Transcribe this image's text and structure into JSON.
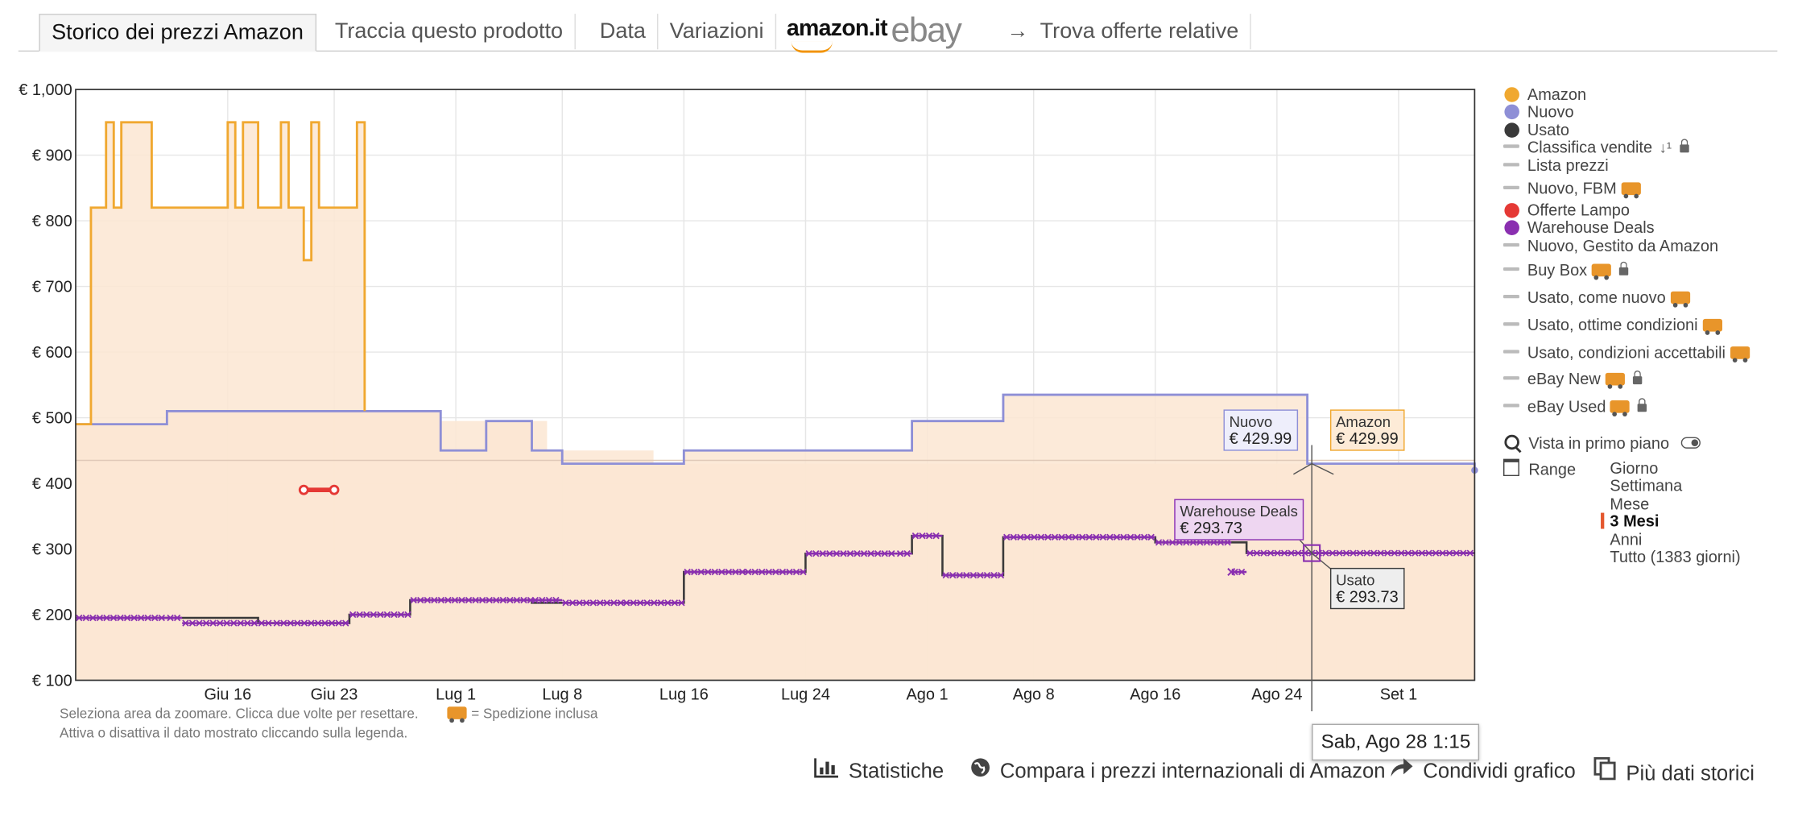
{
  "tabs": [
    {
      "label": "Storico dei prezzi Amazon",
      "active": true
    },
    {
      "label": "Traccia questo prodotto"
    },
    {
      "label": "Data"
    },
    {
      "label": "Variazioni"
    }
  ],
  "logos": {
    "amazon": "amazon.it",
    "ebay": "ebay"
  },
  "find_offers": "Trova offerte relative",
  "colors": {
    "amazon": "#f0a830",
    "amazon_fill": "#fce6d2",
    "nuovo": "#8e8fd6",
    "usato": "#3a3a3a",
    "offerte_lampo": "#e53935",
    "warehouse": "#8a2fb0",
    "range_selected": "#e4572e"
  },
  "chart_data": {
    "type": "line",
    "currency": "€",
    "ylim": [
      100,
      1000
    ],
    "xlim": [
      "2023-06-06",
      "2023-09-06"
    ],
    "y_ticks": [
      "€ 1,000",
      "€ 900",
      "€ 800",
      "€ 700",
      "€ 600",
      "€ 500",
      "€ 400",
      "€ 300",
      "€ 200",
      "€ 100"
    ],
    "x_ticks": [
      "Giu 16",
      "Giu 23",
      "Lug 1",
      "Lug 8",
      "Lug 16",
      "Lug 24",
      "Ago 1",
      "Ago 8",
      "Ago 16",
      "Ago 24",
      "Set 1"
    ],
    "grid": true,
    "legend_placement": "right",
    "series": [
      {
        "name": "Amazon",
        "step": true,
        "x": [
          "2023-06-06",
          "2023-06-07",
          "2023-06-08",
          "2023-06-08 12:00",
          "2023-06-09",
          "2023-06-10",
          "2023-06-11",
          "2023-06-13",
          "2023-06-15",
          "2023-06-16",
          "2023-06-16 12:00",
          "2023-06-17",
          "2023-06-18",
          "2023-06-19",
          "2023-06-19 12:00",
          "2023-06-20",
          "2023-06-20 12:00",
          "2023-06-21",
          "2023-06-21 12:00",
          "2023-06-22",
          "2023-06-23",
          "2023-06-24",
          "2023-06-24 12:00",
          "2023-06-25",
          "2023-06-29",
          "2023-06-30",
          "2023-07-07",
          "2023-07-14",
          "2023-08-31",
          "2023-09-06"
        ],
        "values": [
          490,
          820,
          950,
          820,
          950,
          950,
          820,
          820,
          820,
          950,
          820,
          950,
          820,
          820,
          950,
          820,
          820,
          740,
          950,
          820,
          820,
          820,
          950,
          510,
          510,
          495,
          450,
          430,
          430,
          420
        ]
      },
      {
        "name": "Nuovo",
        "step": true,
        "x": [
          "2023-06-06",
          "2023-06-08",
          "2023-06-12",
          "2023-06-25",
          "2023-06-30",
          "2023-07-01",
          "2023-07-03",
          "2023-07-06",
          "2023-07-08",
          "2023-07-16",
          "2023-07-31",
          "2023-08-06",
          "2023-08-25",
          "2023-08-26",
          "2023-08-28",
          "2023-09-06"
        ],
        "values": [
          490,
          490,
          510,
          510,
          450,
          450,
          495,
          450,
          430,
          450,
          495,
          535,
          535,
          430,
          429.99,
          420
        ]
      },
      {
        "name": "Usato",
        "step": true,
        "x": [
          "2023-06-06",
          "2023-06-12",
          "2023-06-18",
          "2023-06-24",
          "2023-06-28",
          "2023-07-06",
          "2023-07-16",
          "2023-07-24",
          "2023-07-31",
          "2023-08-02",
          "2023-08-06",
          "2023-08-16",
          "2023-08-22",
          "2023-09-06"
        ],
        "values": [
          195,
          195,
          187,
          200,
          222,
          218,
          265,
          293,
          320,
          260,
          318,
          310,
          293.73,
          293.73
        ]
      },
      {
        "name": "Warehouse Deals",
        "markers": "cross",
        "x": [
          "2023-06-06",
          "2023-06-12",
          "2023-06-13",
          "2023-06-18",
          "2023-06-19",
          "2023-06-24",
          "2023-06-28",
          "2023-07-06",
          "2023-07-08",
          "2023-07-12",
          "2023-07-16",
          "2023-07-20",
          "2023-07-24",
          "2023-07-30",
          "2023-07-31",
          "2023-08-02",
          "2023-08-06",
          "2023-08-16",
          "2023-08-21",
          "2023-08-22",
          "2023-09-06"
        ],
        "values": [
          195,
          195,
          187,
          187,
          187,
          200,
          222,
          222,
          218,
          218,
          265,
          265,
          293,
          293,
          320,
          260,
          318,
          310,
          265,
          293.73,
          293.73
        ]
      },
      {
        "name": "Offerte Lampo",
        "x": [
          "2023-06-21",
          "2023-06-23"
        ],
        "values": [
          390,
          390
        ]
      }
    ],
    "legend": [
      {
        "label": "Amazon",
        "marker": "dot",
        "color": "#f0a830"
      },
      {
        "label": "Nuovo",
        "marker": "dot",
        "color": "#8e8fd6"
      },
      {
        "label": "Usato",
        "marker": "dot",
        "color": "#3a3a3a"
      },
      {
        "label": "Classifica vendite",
        "marker": "dash",
        "sort": true,
        "lock": true
      },
      {
        "label": "Lista prezzi",
        "marker": "dash"
      },
      {
        "label": "Nuovo, FBM",
        "marker": "dash",
        "truck": true
      },
      {
        "label": "Offerte Lampo",
        "marker": "dot",
        "color": "#e53935"
      },
      {
        "label": "Warehouse Deals",
        "marker": "dot",
        "color": "#8a2fb0"
      },
      {
        "label": "Nuovo, Gestito da Amazon",
        "marker": "dash"
      },
      {
        "label": "Buy Box",
        "marker": "dash",
        "truck": true,
        "lock": true
      },
      {
        "label": "Usato, come nuovo",
        "marker": "dash",
        "truck": true
      },
      {
        "label": "Usato, ottime condizioni",
        "marker": "dash",
        "truck": true
      },
      {
        "label": "Usato, condizioni accettabili",
        "marker": "dash",
        "truck": true
      },
      {
        "label": "eBay New",
        "marker": "dash",
        "truck": true,
        "lock": true
      },
      {
        "label": "eBay Used",
        "marker": "dash",
        "truck": true,
        "lock": true
      }
    ],
    "tooltips": [
      {
        "series": "Nuovo",
        "label": "Nuovo",
        "value": "€ 429.99",
        "color": "#8e8fd6",
        "bg": "#eeeefb"
      },
      {
        "series": "Amazon",
        "label": "Amazon",
        "value": "€ 429.99",
        "color": "#f0a830",
        "bg": "#fdebd7"
      },
      {
        "series": "Warehouse Deals",
        "label": "Warehouse Deals",
        "value": "€ 293.73",
        "color": "#8a2fb0",
        "bg": "#eed6f1"
      },
      {
        "series": "Usato",
        "label": "Usato",
        "value": "€ 293.73",
        "color": "#3a3a3a",
        "bg": "#eeeeee"
      }
    ],
    "crosshair_date": "Sab, Ago 28 1:15"
  },
  "zoom": {
    "label": "Vista in primo piano"
  },
  "range": {
    "label": "Range",
    "options": [
      "Giorno",
      "Settimana",
      "Mese",
      "3 Mesi",
      "Anni",
      "Tutto (1383 giorni)"
    ],
    "selected": "3 Mesi"
  },
  "hints": {
    "line1": "Seleziona area da zoomare. Clicca due volte per resettare.",
    "line2": "Attiva o disattiva il dato mostrato cliccando sulla legenda.",
    "shipping": "= Spedizione inclusa"
  },
  "footer": {
    "stats": "Statistiche",
    "compare": "Compara i prezzi internazionali di Amazon",
    "share": "Condividi grafico",
    "more": "Più dati storici"
  }
}
